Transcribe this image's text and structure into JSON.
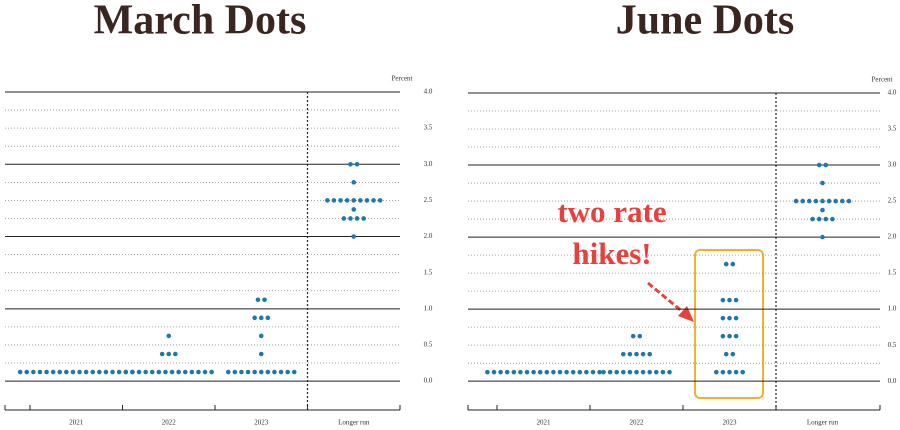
{
  "chart_data": [
    {
      "type": "dot",
      "title": "March Dots",
      "unit_label": "Percent",
      "categories": [
        "2021",
        "2022",
        "2023",
        "Longer run"
      ],
      "values": [
        [
          0.125,
          0.125,
          0.125,
          0.125,
          0.125,
          0.125,
          0.125,
          0.125,
          0.125,
          0.125,
          0.125,
          0.125,
          0.125,
          0.125,
          0.125,
          0.125,
          0.125,
          0.125
        ],
        [
          0.625,
          0.375,
          0.375,
          0.375,
          0.125,
          0.125,
          0.125,
          0.125,
          0.125,
          0.125,
          0.125,
          0.125,
          0.125,
          0.125,
          0.125,
          0.125,
          0.125,
          0.125
        ],
        [
          1.125,
          1.125,
          0.875,
          0.875,
          0.875,
          0.625,
          0.375,
          0.125,
          0.125,
          0.125,
          0.125,
          0.125,
          0.125,
          0.125,
          0.125,
          0.125,
          0.125,
          0.125
        ],
        [
          3.0,
          3.0,
          2.75,
          2.5,
          2.5,
          2.5,
          2.5,
          2.5,
          2.5,
          2.5,
          2.5,
          2.5,
          2.375,
          2.25,
          2.25,
          2.25,
          2.25,
          2.0
        ]
      ],
      "color": "#1f78a8",
      "ylim": [
        -0.4,
        4
      ],
      "yticks": [
        {
          "value": 0,
          "label": "0.0"
        },
        0.5,
        {
          "value": 1,
          "label": "1.0"
        },
        1.5,
        {
          "value": 2,
          "label": "2.0"
        },
        2.5,
        {
          "value": 3,
          "label": "3.0"
        },
        3.5,
        {
          "value": 4,
          "label": "4.0"
        }
      ]
    },
    {
      "type": "dot",
      "title": "June Dots",
      "unit_label": "Percent",
      "categories": [
        "2021",
        "2022",
        "2023",
        "Longer run"
      ],
      "values": [
        [
          0.125,
          0.125,
          0.125,
          0.125,
          0.125,
          0.125,
          0.125,
          0.125,
          0.125,
          0.125,
          0.125,
          0.125,
          0.125,
          0.125,
          0.125,
          0.125,
          0.125,
          0.125
        ],
        [
          0.625,
          0.625,
          0.375,
          0.375,
          0.375,
          0.375,
          0.375,
          0.125,
          0.125,
          0.125,
          0.125,
          0.125,
          0.125,
          0.125,
          0.125,
          0.125,
          0.125,
          0.125
        ],
        [
          1.625,
          1.625,
          1.125,
          1.125,
          1.125,
          0.875,
          0.875,
          0.875,
          0.625,
          0.625,
          0.625,
          0.375,
          0.375,
          0.125,
          0.125,
          0.125,
          0.125,
          0.125
        ],
        [
          3.0,
          3.0,
          2.75,
          2.5,
          2.5,
          2.5,
          2.5,
          2.5,
          2.5,
          2.5,
          2.5,
          2.5,
          2.375,
          2.25,
          2.25,
          2.25,
          2.25,
          2.0
        ]
      ],
      "color": "#1f78a8",
      "ylim": [
        -0.4,
        4
      ],
      "yticks": [
        {
          "value": 0,
          "label": "0.0"
        },
        0.5,
        {
          "value": 1,
          "label": "1.0"
        },
        1.5,
        {
          "value": 2,
          "label": "2.0"
        },
        2.5,
        {
          "value": 3,
          "label": "3.0"
        },
        3.5,
        {
          "value": 4,
          "label": "4.0"
        }
      ],
      "annotation": [
        "two rate",
        "hikes!"
      ]
    }
  ]
}
